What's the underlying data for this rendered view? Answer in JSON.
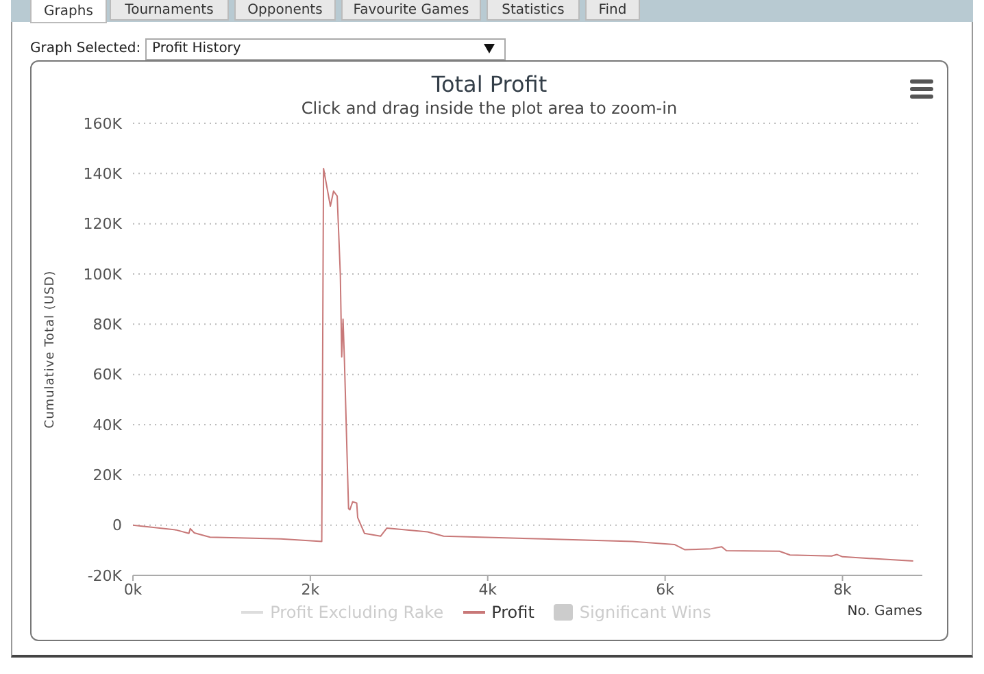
{
  "chart_data": {
    "type": "line",
    "title": "Total Profit",
    "subtitle": "Click and drag inside the plot area to zoom-in",
    "xlabel": "No. Games",
    "ylabel": "Cumulative Total (USD)",
    "annotations": [
      "Graphs",
      "Tournaments",
      "Opponents",
      "Favourite Games",
      "Statistics",
      "Find",
      "Graph Selected:",
      "Profit History"
    ],
    "x": [
      0,
      485,
      631,
      646,
      692,
      869,
      1668,
      2129,
      2149,
      2226,
      2262,
      2303,
      2338,
      2354,
      2369,
      2385,
      2431,
      2446,
      2477,
      2523,
      2534,
      2611,
      2792,
      2862,
      3323,
      3502,
      4626,
      5631,
      6105,
      6223,
      6520,
      6638,
      6692,
      7289,
      7408,
      7877,
      7938,
      8000,
      8797
    ],
    "series": [
      {
        "name": "Profit Excluding Rake",
        "color": "#dddddd",
        "values": [
          null,
          null,
          null,
          null,
          null,
          null,
          null,
          null,
          null,
          null,
          null,
          null,
          null,
          null,
          null,
          null,
          null,
          null,
          null,
          null,
          null,
          null,
          null,
          null,
          null,
          null,
          null,
          null,
          null,
          null,
          null,
          null,
          null,
          null,
          null,
          null,
          null,
          null,
          null
        ]
      },
      {
        "name": "Profit",
        "color": "#c87878",
        "values": [
          0,
          -1900,
          -3300,
          -1400,
          -3100,
          -4800,
          -5500,
          -6500,
          142000,
          127000,
          133000,
          131000,
          100000,
          67000,
          82000,
          65000,
          6600,
          6100,
          9300,
          8800,
          3000,
          -3300,
          -4400,
          -1200,
          -2700,
          -4400,
          -5500,
          -6500,
          -7700,
          -9800,
          -9400,
          -8600,
          -10200,
          -10400,
          -11900,
          -12300,
          -11700,
          -12600,
          -14300
        ]
      },
      {
        "name": "Significant Wins",
        "color": "#cccccc",
        "type": "bar",
        "values": [
          null,
          null,
          null,
          null,
          null,
          null,
          null,
          null,
          null,
          null,
          null,
          null,
          null,
          null,
          null,
          null,
          null,
          null,
          null,
          null,
          null,
          null,
          null,
          null,
          null,
          null,
          null,
          null,
          null,
          null,
          null,
          null,
          null,
          null,
          null,
          null,
          null,
          null,
          null
        ]
      }
    ],
    "xlim": [
      0,
      8900
    ],
    "xticks": [
      {
        "value": 0,
        "label": "0k"
      },
      {
        "value": 2000,
        "label": "2k"
      },
      {
        "value": 4000,
        "label": "4k"
      },
      {
        "value": 6000,
        "label": "6k"
      },
      {
        "value": 8000,
        "label": "8k"
      }
    ],
    "ylim": [
      -20000,
      160000
    ],
    "yticks": [
      {
        "value": -20000,
        "label": "-20K"
      },
      {
        "value": 0,
        "label": "0"
      },
      {
        "value": 20000,
        "label": "20K"
      },
      {
        "value": 40000,
        "label": "40K"
      },
      {
        "value": 60000,
        "label": "60K"
      },
      {
        "value": 80000,
        "label": "80K"
      },
      {
        "value": 100000,
        "label": "100K"
      },
      {
        "value": 120000,
        "label": "120K"
      },
      {
        "value": 140000,
        "label": "140K"
      },
      {
        "value": 160000,
        "label": "160K"
      }
    ],
    "grid": "y",
    "legend": "bottom",
    "marker": "none",
    "line_style": "solid"
  }
}
